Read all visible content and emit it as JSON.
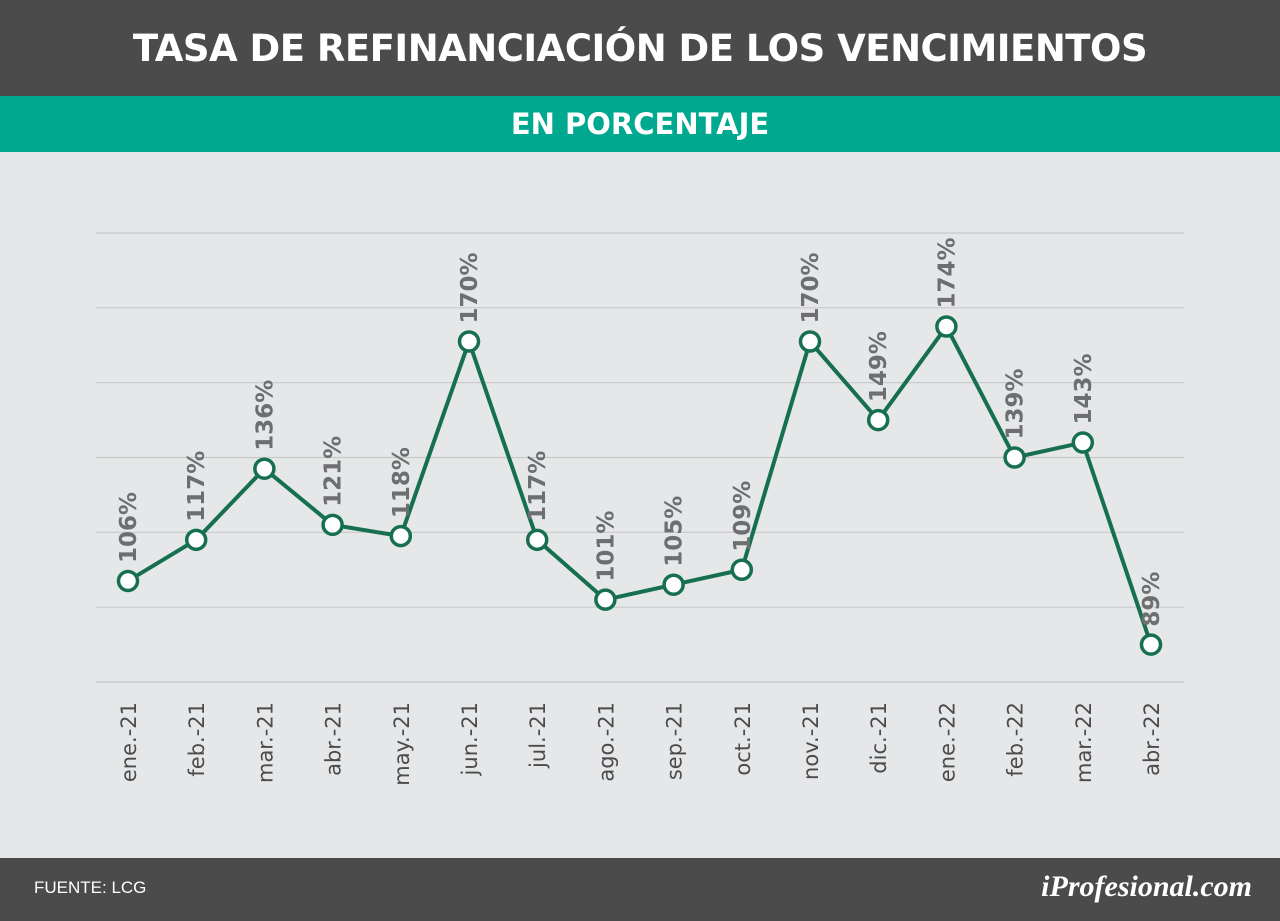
{
  "header": {
    "title": "TASA DE REFINANCIACIÓN DE LOS VENCIMIENTOS",
    "subtitle": "EN PORCENTAJE"
  },
  "footer": {
    "source": "FUENTE: LCG",
    "brand": "iProfesional.com"
  },
  "colors": {
    "line": "#16704f",
    "label": "#6d6e70",
    "grid": "#c8c9cb",
    "title_bg": "#4b4b4c",
    "subtitle_bg": "#00a88f"
  },
  "chart_data": {
    "type": "line",
    "categories": [
      "ene.-21",
      "feb.-21",
      "mar.-21",
      "abr.-21",
      "may.-21",
      "jun.-21",
      "jul.-21",
      "ago.-21",
      "sep.-21",
      "oct.-21",
      "nov.-21",
      "dic.-21",
      "ene.-22",
      "feb.-22",
      "mar.-22",
      "abr.-22"
    ],
    "values": [
      106,
      117,
      136,
      121,
      118,
      170,
      117,
      101,
      105,
      109,
      170,
      149,
      174,
      139,
      143,
      89
    ],
    "data_labels": [
      "106%",
      "117%",
      "136%",
      "121%",
      "118%",
      "170%",
      "117%",
      "101%",
      "105%",
      "109%",
      "170%",
      "149%",
      "174%",
      "139%",
      "143%",
      "89%"
    ],
    "ylim": [
      79,
      199
    ],
    "y_gridlines": [
      79,
      99,
      119,
      139,
      159,
      179,
      199
    ],
    "grid": true,
    "xlabel": "",
    "ylabel": ""
  }
}
